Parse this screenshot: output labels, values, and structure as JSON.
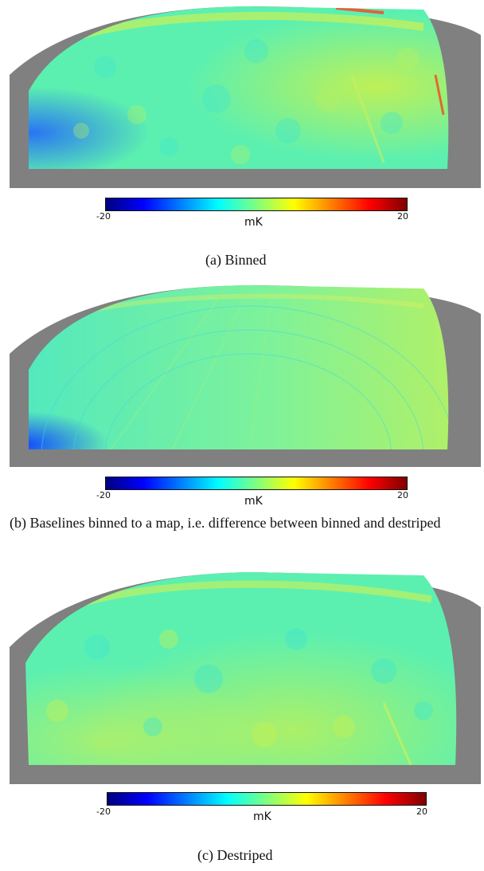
{
  "figures": [
    {
      "id": "a",
      "caption": "(a) Binned",
      "colorbar": {
        "min_label": "-20",
        "max_label": "20",
        "unit": "mK"
      }
    },
    {
      "id": "b",
      "caption": "(b) Baselines binned to a map, i.e. difference between binned and destriped",
      "colorbar": {
        "min_label": "-20",
        "max_label": "20",
        "unit": "mK"
      }
    },
    {
      "id": "c",
      "caption": "(c) Destriped",
      "colorbar": {
        "min_label": "-20",
        "max_label": "20",
        "unit": "mK"
      }
    }
  ],
  "colors": {
    "background_mask": "#808080",
    "map_base": "#5cf0b0",
    "colormap": [
      "#00007f",
      "#0000ff",
      "#007fff",
      "#00ffff",
      "#7fff7f",
      "#ffff00",
      "#ff7f00",
      "#ff0000",
      "#7f0000"
    ]
  },
  "colormap_name": "jet"
}
